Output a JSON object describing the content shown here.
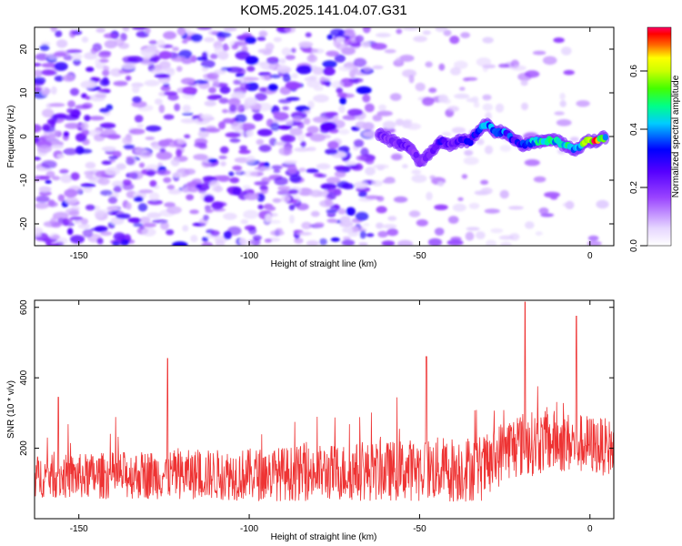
{
  "title": "KOM5.2025.141.04.07.G31",
  "chart_data": [
    {
      "type": "heatmap",
      "xlabel": "Height of straight line (km)",
      "ylabel": "Frequency (Hz)",
      "xlim": [
        -163,
        7
      ],
      "ylim": [
        -25,
        25
      ],
      "x_ticks": [
        -150,
        -100,
        -50,
        0
      ],
      "y_ticks": [
        -20,
        -10,
        0,
        10,
        20
      ],
      "colorbar": {
        "label": "Normalized spectral amplitude",
        "range": [
          0.0,
          0.75
        ],
        "ticks": [
          0.0,
          0.2,
          0.4,
          0.6
        ]
      },
      "signal_track": {
        "x": [
          -62,
          -58,
          -55,
          -52,
          -50,
          -47,
          -44,
          -41,
          -38,
          -35,
          -32,
          -30,
          -28,
          -25,
          -22,
          -19,
          -16,
          -13,
          -10,
          -7,
          -4,
          -1,
          2,
          5
        ],
        "frequency": [
          0.5,
          -1,
          -2,
          -3,
          -6,
          -4,
          -1,
          -2,
          -1,
          -1,
          2,
          3,
          1,
          1,
          -1,
          -2,
          -1,
          -1,
          -1,
          -2,
          -3,
          -1,
          -1,
          0
        ],
        "amplitude": [
          0.22,
          0.2,
          0.24,
          0.22,
          0.2,
          0.24,
          0.28,
          0.25,
          0.3,
          0.32,
          0.38,
          0.42,
          0.35,
          0.4,
          0.3,
          0.35,
          0.45,
          0.5,
          0.48,
          0.52,
          0.4,
          0.6,
          0.72,
          0.45
        ]
      },
      "grid": false
    },
    {
      "type": "line",
      "xlabel": "Height of straight line (km)",
      "ylabel": "SNR (10 * v/v)",
      "xlim": [
        -163,
        7
      ],
      "ylim": [
        0,
        620
      ],
      "x_ticks": [
        -150,
        -100,
        -50,
        0
      ],
      "y_ticks": [
        200,
        400,
        600
      ],
      "series": [
        {
          "color": "#ee3333",
          "envelope_x": [
            -163,
            -150,
            -130,
            -120,
            -100,
            -80,
            -60,
            -50,
            -40,
            -30,
            -25,
            -20,
            -15,
            -10,
            -5,
            0,
            7
          ],
          "baseline": [
            120,
            120,
            125,
            125,
            125,
            130,
            135,
            140,
            140,
            145,
            200,
            210,
            215,
            220,
            215,
            210,
            200
          ],
          "spread": [
            60,
            65,
            70,
            70,
            75,
            80,
            85,
            90,
            95,
            95,
            90,
            95,
            90,
            90,
            85,
            85,
            80
          ],
          "peaks": [
            {
              "x": -156,
              "y": 345
            },
            {
              "x": -124,
              "y": 455
            },
            {
              "x": -48,
              "y": 460
            },
            {
              "x": -19,
              "y": 615
            },
            {
              "x": -4,
              "y": 575
            }
          ]
        }
      ],
      "grid": false
    }
  ],
  "colors": {
    "colormap": [
      "#ffffff",
      "#cc99ff",
      "#8800ff",
      "#0000ff",
      "#00ffff",
      "#00ff00",
      "#ffff00",
      "#ff0000",
      "#ff0066"
    ],
    "snr_line": "#ee3333"
  }
}
